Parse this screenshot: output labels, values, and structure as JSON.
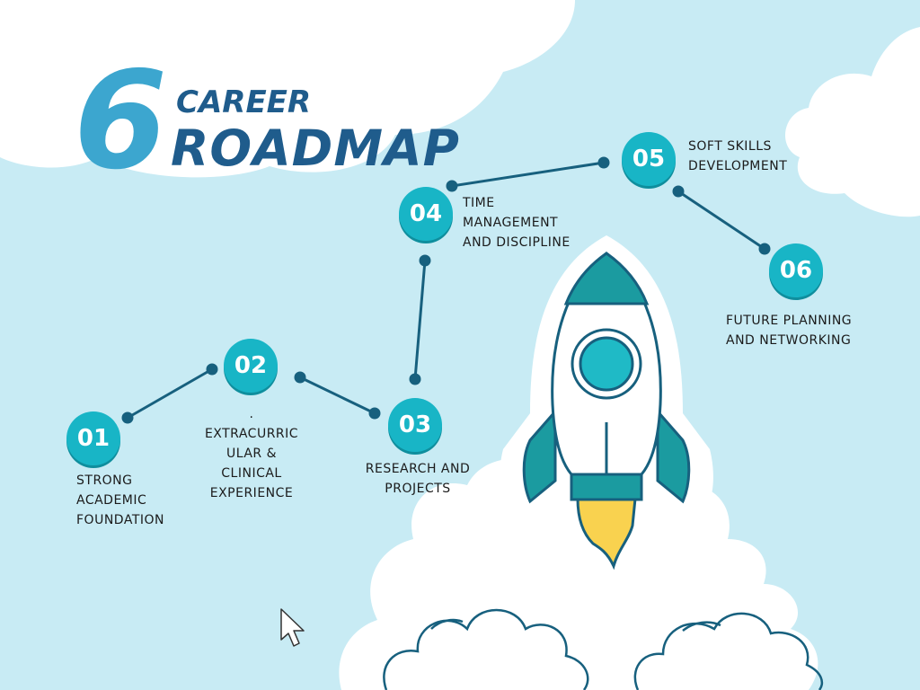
{
  "title": {
    "number": "6",
    "line1": "CAREER",
    "line2": "ROADMAP"
  },
  "steps": [
    {
      "badge": "01",
      "label": "STRONG\nACADEMIC\nFOUNDATION"
    },
    {
      "badge": "02",
      "label": ".\nEXTRACURRIC\nULAR &\nCLINICAL\nEXPERIENCE"
    },
    {
      "badge": "03",
      "label": "RESEARCH AND\nPROJECTS"
    },
    {
      "badge": "04",
      "label": "TIME\nMANAGEMENT\nAND DISCIPLINE"
    },
    {
      "badge": "05",
      "label": "SOFT SKILLS\nDEVELOPMENT"
    },
    {
      "badge": "06",
      "label": "FUTURE PLANNING\nAND NETWORKING"
    }
  ],
  "colors": {
    "background": "#c8ebf4",
    "cloud": "#ffffff",
    "badge": "#18b5c6",
    "connector": "#17607e",
    "title_light": "#3ca6cf",
    "title_dark": "#1f5c8c",
    "rocket_teal": "#1b9ba0",
    "rocket_window": "#1fbac6",
    "flame": "#f9d24f"
  },
  "icons": {
    "rocket": "rocket-icon",
    "cursor": "mouse-pointer-icon"
  }
}
